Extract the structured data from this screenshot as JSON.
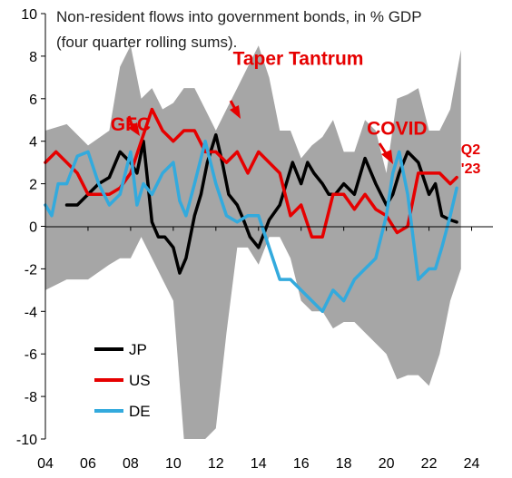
{
  "chart_data": {
    "type": "area",
    "title": "Non-resident flows into government bonds, in % GDP",
    "subtitle": "(four quarter rolling sums).",
    "xlabel": "",
    "ylabel": "",
    "xlim": [
      2004,
      2025
    ],
    "ylim": [
      -10,
      10
    ],
    "x_ticks": [
      4,
      6,
      8,
      10,
      12,
      14,
      16,
      18,
      20,
      22,
      24
    ],
    "x_tick_labels": [
      "04",
      "06",
      "08",
      "10",
      "12",
      "14",
      "16",
      "18",
      "20",
      "22",
      "24"
    ],
    "y_ticks": [
      10,
      8,
      6,
      4,
      2,
      0,
      -2,
      -4,
      -6,
      -8,
      -10
    ],
    "y_tick_labels": [
      "10",
      "8",
      "6",
      "4",
      "2",
      "0",
      "-2",
      "-4",
      "-6",
      "-8",
      "-10"
    ],
    "grid": false,
    "legend_position": "bottom-left",
    "band": {
      "color": "#a6a6a6",
      "x": [
        2004.0,
        2005.0,
        2006.0,
        2007.0,
        2007.5,
        2008.0,
        2008.5,
        2009.0,
        2009.5,
        2010.0,
        2010.5,
        2011.0,
        2011.5,
        2012.0,
        2012.5,
        2013.0,
        2013.5,
        2014.0,
        2014.5,
        2015.0,
        2015.5,
        2016.0,
        2016.5,
        2017.0,
        2017.5,
        2018.0,
        2018.5,
        2019.0,
        2019.5,
        2020.0,
        2020.5,
        2021.0,
        2021.5,
        2022.0,
        2022.5,
        2023.0,
        2023.5
      ],
      "upper": [
        4.5,
        4.8,
        3.8,
        4.5,
        7.5,
        8.5,
        6.0,
        6.5,
        5.5,
        5.8,
        6.5,
        6.5,
        5.5,
        4.5,
        5.5,
        6.5,
        7.5,
        8.5,
        7.0,
        4.5,
        4.5,
        3.2,
        3.8,
        4.2,
        5.0,
        3.5,
        3.5,
        5.0,
        4.5,
        2.5,
        6.0,
        6.2,
        6.5,
        4.5,
        4.5,
        5.5,
        8.3
      ],
      "lower": [
        -3.0,
        -2.5,
        -2.5,
        -1.8,
        -1.5,
        -1.5,
        -0.5,
        -1.5,
        -2.5,
        -3.5,
        -10.0,
        -10.0,
        -10.0,
        -9.5,
        -5.0,
        -1.0,
        -1.0,
        -1.8,
        -0.5,
        -0.5,
        -1.5,
        -3.5,
        -4.0,
        -4.0,
        -4.8,
        -4.5,
        -4.5,
        -5.0,
        -5.5,
        -6.0,
        -7.2,
        -7.0,
        -7.0,
        -7.5,
        -6.0,
        -3.5,
        -2.0
      ]
    },
    "series": [
      {
        "name": "JP",
        "color": "#000000",
        "x": [
          2005.0,
          2005.5,
          2006.0,
          2006.5,
          2007.0,
          2007.5,
          2008.0,
          2008.3,
          2008.6,
          2009.0,
          2009.3,
          2009.6,
          2010.0,
          2010.3,
          2010.6,
          2011.0,
          2011.3,
          2011.6,
          2012.0,
          2012.3,
          2012.6,
          2013.0,
          2013.3,
          2013.6,
          2014.0,
          2014.5,
          2015.0,
          2015.3,
          2015.6,
          2016.0,
          2016.3,
          2016.6,
          2017.0,
          2017.3,
          2017.6,
          2018.0,
          2018.5,
          2019.0,
          2019.5,
          2020.0,
          2020.3,
          2020.6,
          2021.0,
          2021.5,
          2022.0,
          2022.3,
          2022.6,
          2023.0,
          2023.3
        ],
        "y": [
          1.0,
          1.0,
          1.5,
          2.0,
          2.3,
          3.5,
          3.0,
          2.5,
          4.0,
          0.2,
          -0.5,
          -0.5,
          -1.0,
          -2.2,
          -1.5,
          0.5,
          1.5,
          3.0,
          4.3,
          3.0,
          1.5,
          1.0,
          0.3,
          -0.5,
          -1.0,
          0.3,
          1.0,
          2.0,
          3.0,
          2.0,
          3.0,
          2.5,
          2.0,
          1.5,
          1.5,
          2.0,
          1.5,
          3.2,
          2.0,
          1.0,
          1.5,
          2.5,
          3.5,
          3.0,
          1.5,
          2.0,
          0.5,
          0.3,
          0.2
        ]
      },
      {
        "name": "US",
        "color": "#e60000",
        "x": [
          2004.0,
          2004.5,
          2005.0,
          2005.5,
          2006.0,
          2006.5,
          2007.0,
          2007.5,
          2008.0,
          2008.5,
          2009.0,
          2009.5,
          2010.0,
          2010.5,
          2011.0,
          2011.5,
          2012.0,
          2012.5,
          2013.0,
          2013.5,
          2014.0,
          2014.5,
          2015.0,
          2015.5,
          2016.0,
          2016.5,
          2017.0,
          2017.5,
          2018.0,
          2018.5,
          2019.0,
          2019.5,
          2020.0,
          2020.5,
          2021.0,
          2021.5,
          2022.0,
          2022.5,
          2023.0,
          2023.3
        ],
        "y": [
          3.0,
          3.5,
          3.0,
          2.5,
          1.5,
          1.5,
          1.5,
          1.8,
          2.5,
          4.0,
          5.5,
          4.5,
          4.0,
          4.5,
          4.5,
          3.5,
          3.5,
          3.0,
          3.5,
          2.5,
          3.5,
          3.0,
          2.5,
          0.5,
          1.0,
          -0.5,
          -0.5,
          1.5,
          1.5,
          0.8,
          1.5,
          0.8,
          0.5,
          -0.3,
          0.0,
          2.5,
          2.5,
          2.5,
          2.0,
          2.3
        ]
      },
      {
        "name": "DE",
        "color": "#33aadd",
        "x": [
          2004.0,
          2004.3,
          2004.6,
          2005.0,
          2005.5,
          2006.0,
          2006.5,
          2007.0,
          2007.5,
          2008.0,
          2008.3,
          2008.6,
          2009.0,
          2009.5,
          2010.0,
          2010.3,
          2010.6,
          2011.0,
          2011.5,
          2012.0,
          2012.5,
          2013.0,
          2013.5,
          2014.0,
          2014.5,
          2015.0,
          2015.5,
          2016.0,
          2016.5,
          2017.0,
          2017.5,
          2018.0,
          2018.5,
          2019.0,
          2019.5,
          2020.0,
          2020.3,
          2020.6,
          2021.0,
          2021.5,
          2022.0,
          2022.3,
          2022.6,
          2023.0,
          2023.3
        ],
        "y": [
          1.0,
          0.5,
          2.0,
          2.0,
          3.3,
          3.5,
          2.0,
          1.0,
          1.5,
          3.5,
          1.0,
          2.0,
          1.5,
          2.5,
          3.0,
          1.2,
          0.5,
          2.0,
          4.0,
          2.0,
          0.5,
          0.2,
          0.5,
          0.5,
          -1.0,
          -2.5,
          -2.5,
          -3.0,
          -3.5,
          -4.0,
          -3.0,
          -3.5,
          -2.5,
          -2.0,
          -1.5,
          0.5,
          2.5,
          3.5,
          1.5,
          -2.5,
          -2.0,
          -2.0,
          -1.0,
          0.5,
          1.8
        ]
      }
    ],
    "annotations": [
      {
        "text": "GFC",
        "x": 2008.0,
        "y": 4.5,
        "size": 21
      },
      {
        "text": "Taper Tantrum",
        "x": 2012.8,
        "y": 7.6,
        "size": 21
      },
      {
        "text": "COVID",
        "x": 2020.5,
        "y": 4.3,
        "size": 21
      },
      {
        "text": "Q2",
        "x": 2023.5,
        "y": 3.4,
        "size": 16
      },
      {
        "text": "'23",
        "x": 2023.5,
        "y": 2.5,
        "size": 16
      }
    ]
  }
}
